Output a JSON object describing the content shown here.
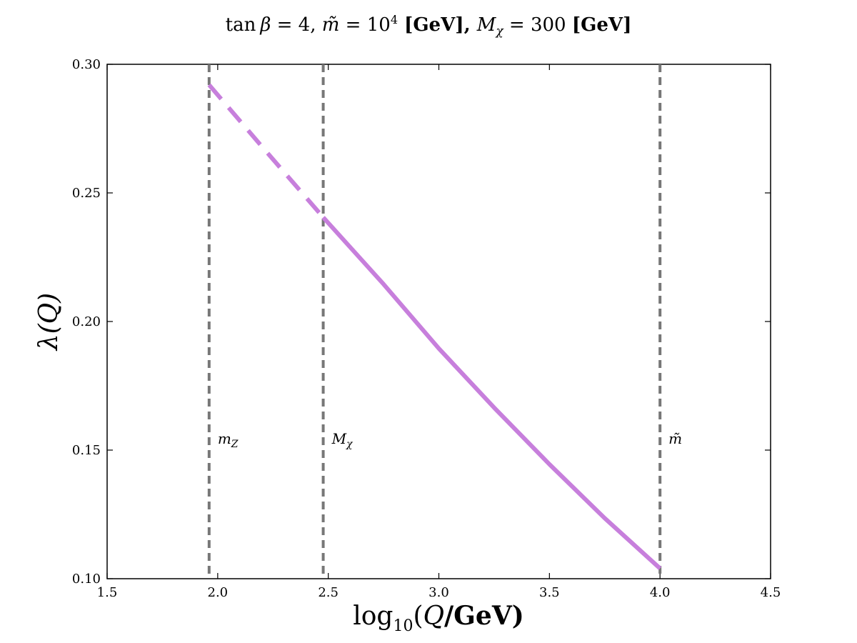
{
  "chart_data": {
    "type": "line",
    "title": "tan β = 4, m̃ = 10⁴ [GeV], M_χ = 300 [GeV]",
    "title_parts": {
      "tan": "tan",
      "beta": "β",
      "eq1": " = 4, ",
      "mtilde": "m̃",
      "eq2": " = 10",
      "exp": "4",
      "unit1": " [GeV], ",
      "M": "M",
      "chi": "χ",
      "eq3": " = 300 ",
      "unit2": "[GeV]"
    },
    "xlabel": "log₁₀(Q/GeV)",
    "xlabel_parts": {
      "log": "log",
      "sub": "10",
      "open": "(",
      "Q": "Q",
      "rest": "/GeV)"
    },
    "ylabel": "λ(Q)",
    "xlim": [
      1.5,
      4.5
    ],
    "ylim": [
      0.1,
      0.3
    ],
    "xticks": [
      "1.5",
      "2.0",
      "2.5",
      "3.0",
      "3.5",
      "4.0",
      "4.5"
    ],
    "yticks": [
      "0.10",
      "0.15",
      "0.20",
      "0.25",
      "0.30"
    ],
    "grid": false,
    "series": [
      {
        "style": "dashed",
        "color": "#c77fdc",
        "x": [
          1.9612,
          2.2,
          2.4771
        ],
        "y": [
          0.292,
          0.268,
          0.2405
        ]
      },
      {
        "style": "solid",
        "color": "#c77fdc",
        "x": [
          2.4771,
          2.75,
          3.0,
          3.25,
          3.5,
          3.75,
          4.0
        ],
        "y": [
          0.2405,
          0.2145,
          0.1895,
          0.1665,
          0.1445,
          0.1235,
          0.104
        ]
      }
    ],
    "vertical_lines": [
      {
        "x": 1.9612,
        "label": "m",
        "sub": "Z",
        "color": "#777777"
      },
      {
        "x": 2.4771,
        "label": "M",
        "sub": "χ",
        "color": "#777777"
      },
      {
        "x": 4.0,
        "label": "m̃",
        "sub": "",
        "color": "#777777"
      }
    ],
    "vline_label_y": 0.1525
  }
}
